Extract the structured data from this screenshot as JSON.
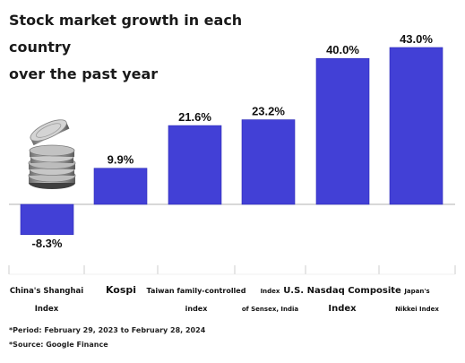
{
  "title_lines": [
    "Stock market growth in each country",
    "over the past year"
  ],
  "notes": {
    "period": "*Period: February 29, 2023 to February 28, 2024",
    "source": "*Source: Google Finance"
  },
  "colors": {
    "bar": "#4240d6",
    "bar_edge": "#2d2bb8",
    "axis": "#999999",
    "divider": "#cccccc"
  },
  "chart_data": {
    "type": "bar",
    "title": "Stock market growth in each country over the past year",
    "xlabel": "",
    "ylabel": "",
    "categories": [
      [
        "China's Shanghai",
        "Index"
      ],
      [
        "Kospi"
      ],
      [
        "Taiwan family-controlled",
        "index"
      ],
      [
        "Index",
        "of Sensex, India"
      ],
      [
        "U.S. Nasdaq Composite",
        "Index"
      ],
      [
        "Japan's",
        "Nikkei Index"
      ]
    ],
    "values": [
      -8.3,
      9.9,
      21.6,
      23.2,
      40.0,
      43.0
    ],
    "value_labels": [
      "-8.3%",
      "9.9%",
      "21.6%",
      "23.2%",
      "40.0%",
      "43.0%"
    ],
    "ylim": [
      -10,
      45
    ],
    "grid": false,
    "legend": "none"
  }
}
